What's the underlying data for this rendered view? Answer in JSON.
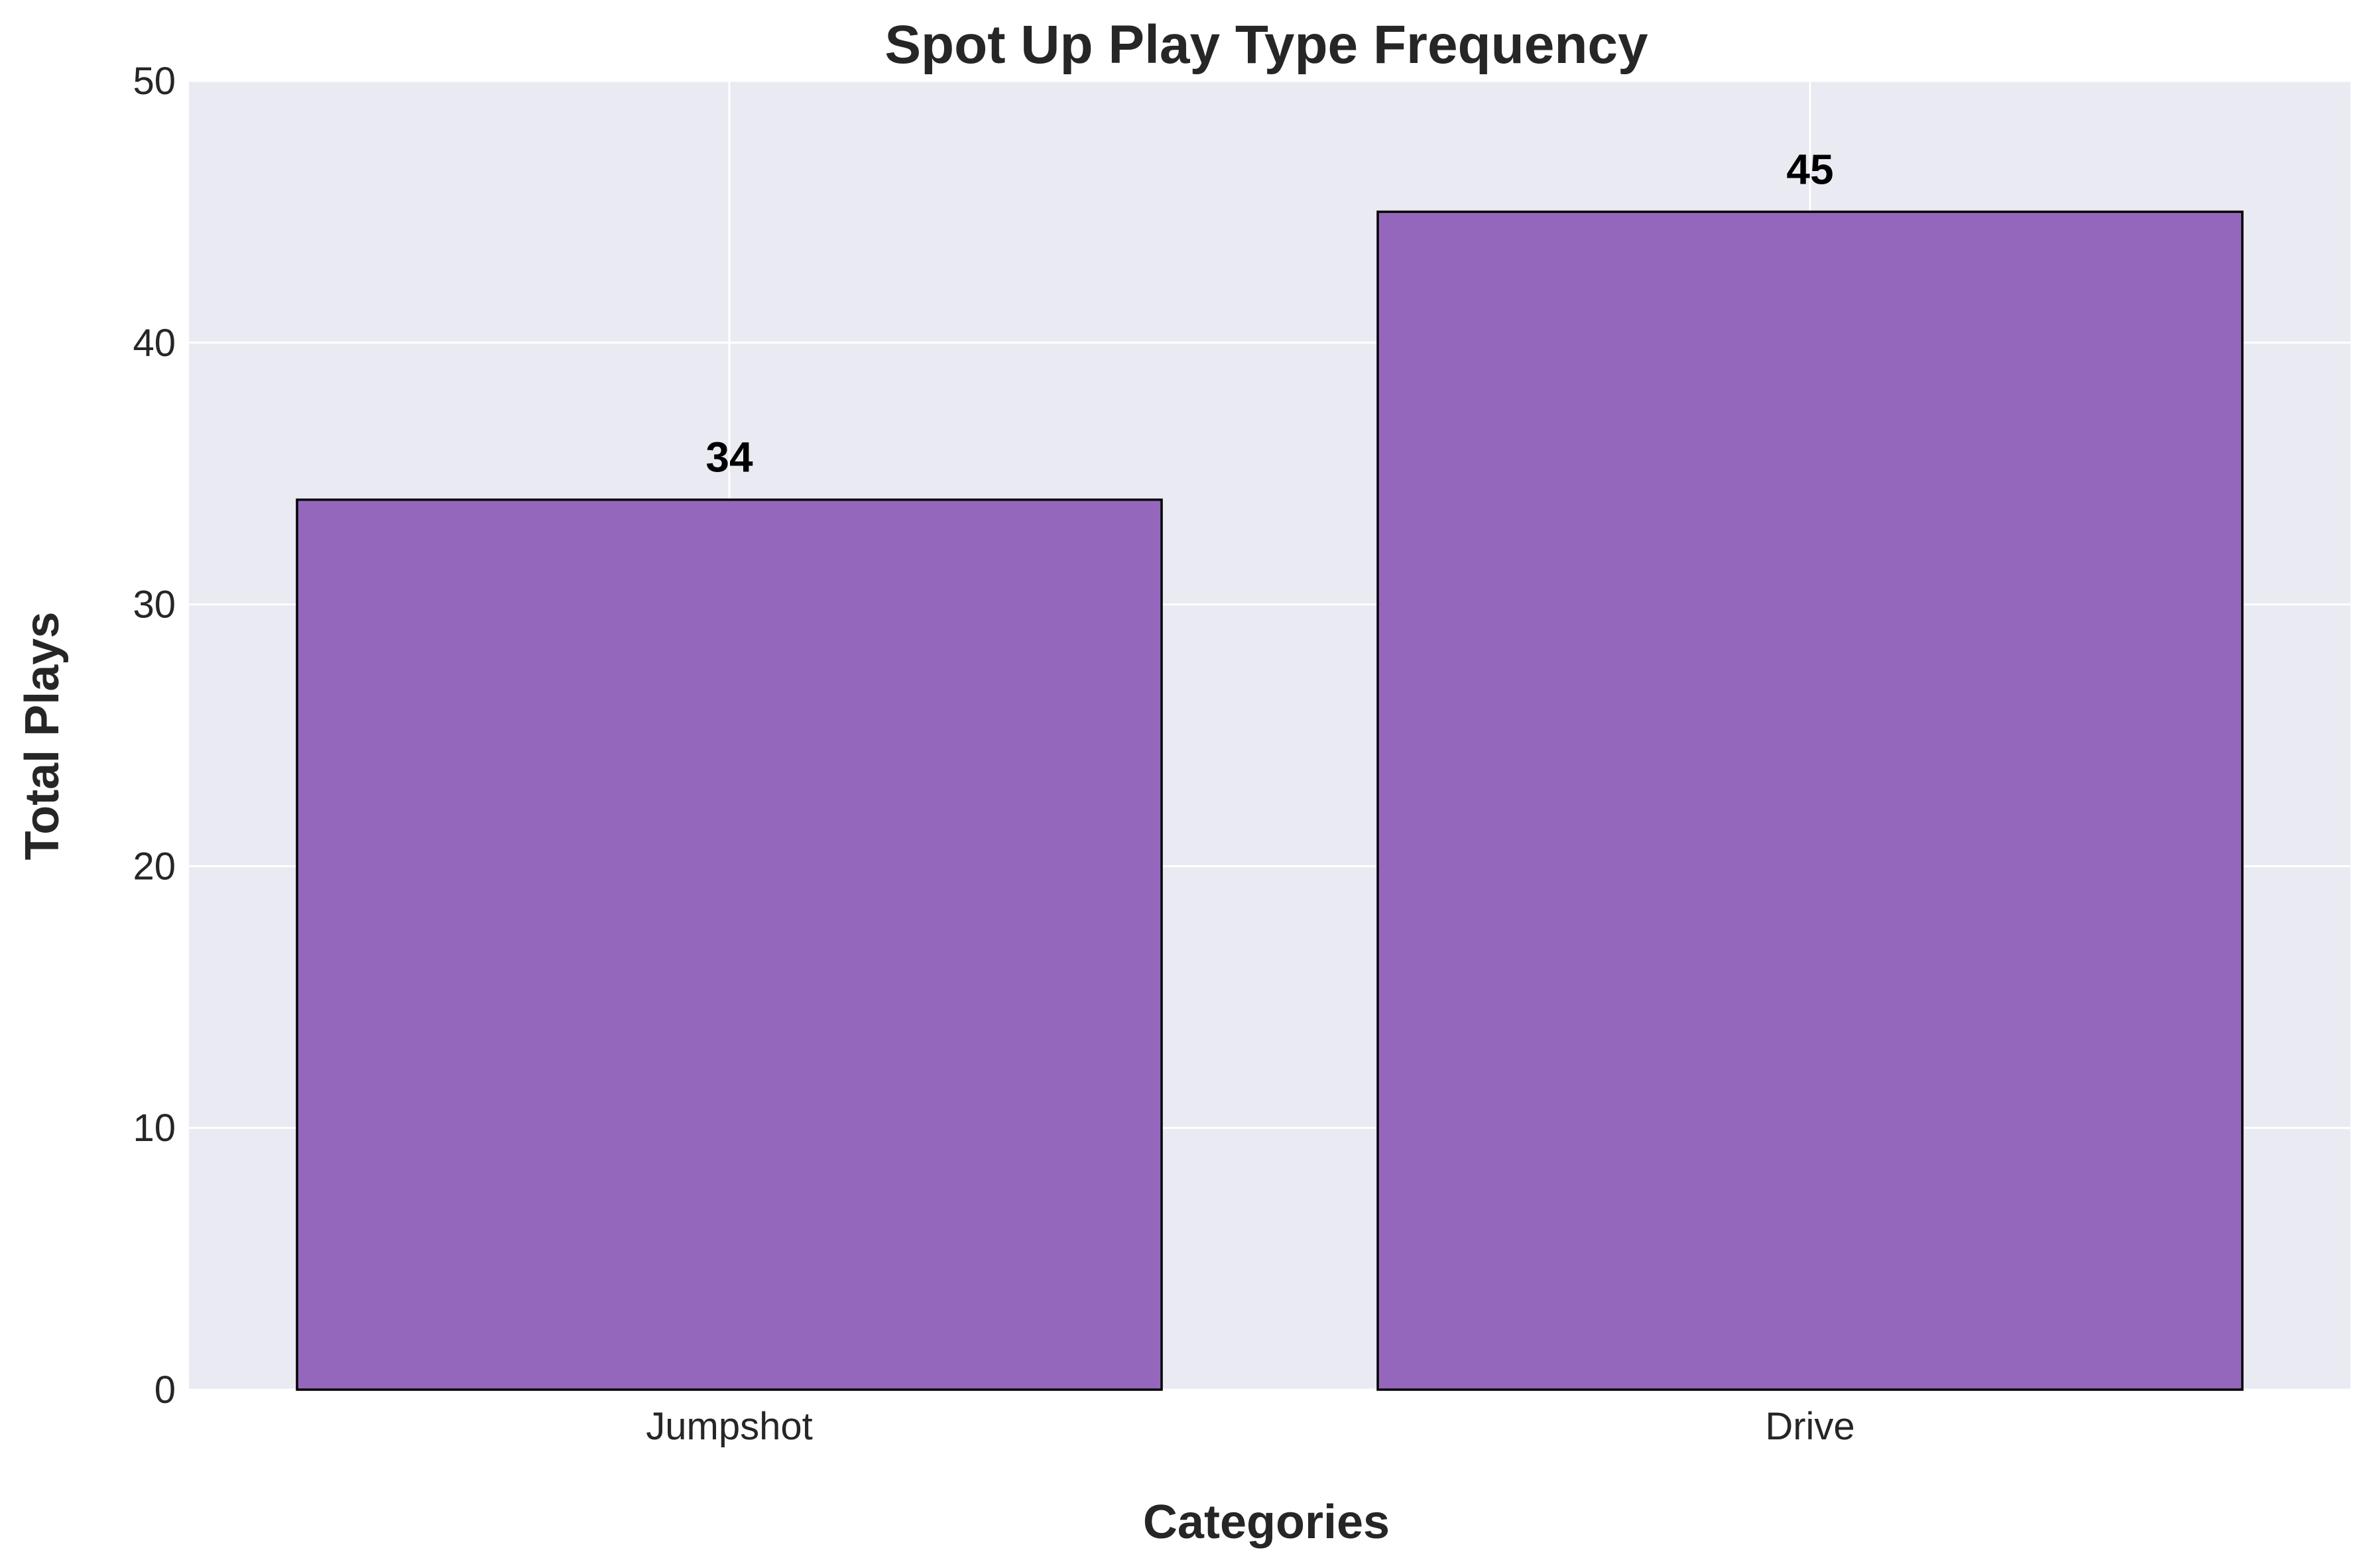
{
  "chart_data": {
    "type": "bar",
    "title": "Spot Up Play Type Frequency",
    "xlabel": "Categories",
    "ylabel": "Total Plays",
    "categories": [
      "Jumpshot",
      "Drive"
    ],
    "values": [
      34,
      45
    ],
    "data_labels": [
      "34",
      "45"
    ],
    "ylim": [
      0,
      50
    ],
    "yticks": [
      0,
      10,
      20,
      30,
      40,
      50
    ],
    "ytick_labels": [
      "0",
      "10",
      "20",
      "30",
      "40",
      "50"
    ],
    "grid": true,
    "legend": "none",
    "colors": {
      "bar_fill": "#9467bd",
      "bar_edge": "#000000",
      "plot_background": "#eaeaf2",
      "grid": "#ffffff"
    }
  }
}
